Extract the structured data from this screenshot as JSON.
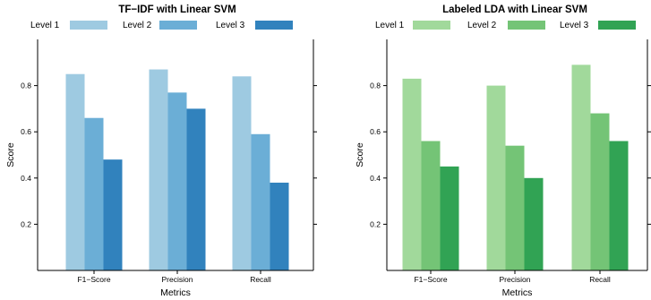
{
  "chart_data": [
    {
      "type": "bar",
      "title": "TF−IDF with Linear SVM",
      "xlabel": "Metrics",
      "ylabel": "Score",
      "categories": [
        "F1−Score",
        "Precision",
        "Recall"
      ],
      "ylim": [
        0,
        1.0
      ],
      "yticks": [
        0.2,
        0.4,
        0.6,
        0.8
      ],
      "grid": false,
      "legend": "top",
      "series": [
        {
          "name": "Level 1",
          "color": "#9ecae1",
          "values": [
            0.85,
            0.87,
            0.84
          ]
        },
        {
          "name": "Level 2",
          "color": "#6baed6",
          "values": [
            0.66,
            0.77,
            0.59
          ]
        },
        {
          "name": "Level 3",
          "color": "#3182bd",
          "values": [
            0.48,
            0.7,
            0.38
          ]
        }
      ]
    },
    {
      "type": "bar",
      "title": "Labeled LDA with Linear SVM",
      "xlabel": "Metrics",
      "ylabel": "Score",
      "categories": [
        "F1−Score",
        "Precision",
        "Recall"
      ],
      "ylim": [
        0,
        1.0
      ],
      "yticks": [
        0.2,
        0.4,
        0.6,
        0.8
      ],
      "grid": false,
      "legend": "top",
      "series": [
        {
          "name": "Level 1",
          "color": "#a1d99b",
          "values": [
            0.83,
            0.8,
            0.89
          ]
        },
        {
          "name": "Level 2",
          "color": "#74c476",
          "values": [
            0.56,
            0.54,
            0.68
          ]
        },
        {
          "name": "Level 3",
          "color": "#31a354",
          "values": [
            0.45,
            0.4,
            0.56
          ]
        }
      ]
    }
  ]
}
